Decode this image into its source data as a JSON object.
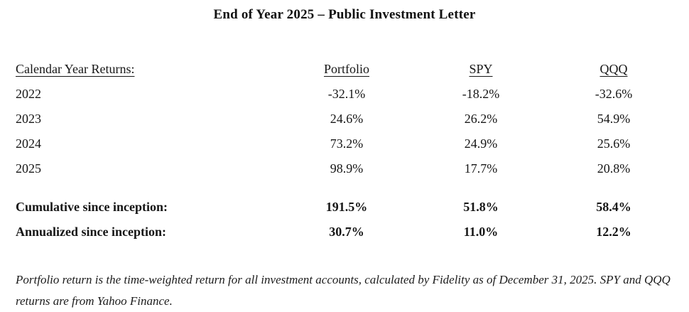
{
  "title": "End of Year 2025 – Public Investment Letter",
  "table": {
    "row_header_label": "Calendar Year Returns:",
    "columns": [
      "Portfolio",
      "SPY",
      "QQQ"
    ],
    "rows": [
      {
        "label": "2022",
        "values": [
          "-32.1%",
          "-18.2%",
          "-32.6%"
        ]
      },
      {
        "label": "2023",
        "values": [
          "24.6%",
          "26.2%",
          "54.9%"
        ]
      },
      {
        "label": "2024",
        "values": [
          "73.2%",
          "24.9%",
          "25.6%"
        ]
      },
      {
        "label": "2025",
        "values": [
          "98.9%",
          "17.7%",
          "20.8%"
        ]
      }
    ],
    "summary_rows": [
      {
        "label": "Cumulative since inception:",
        "values": [
          "191.5%",
          "51.8%",
          "58.4%"
        ]
      },
      {
        "label": "Annualized since inception:",
        "values": [
          "30.7%",
          "11.0%",
          "12.2%"
        ]
      }
    ]
  },
  "footnote": "Portfolio return is the time-weighted return for all investment accounts, calculated by Fidelity as of December 31, 2025. SPY and QQQ returns are from Yahoo Finance.",
  "colors": {
    "text": "#161616",
    "background": "#ffffff"
  }
}
